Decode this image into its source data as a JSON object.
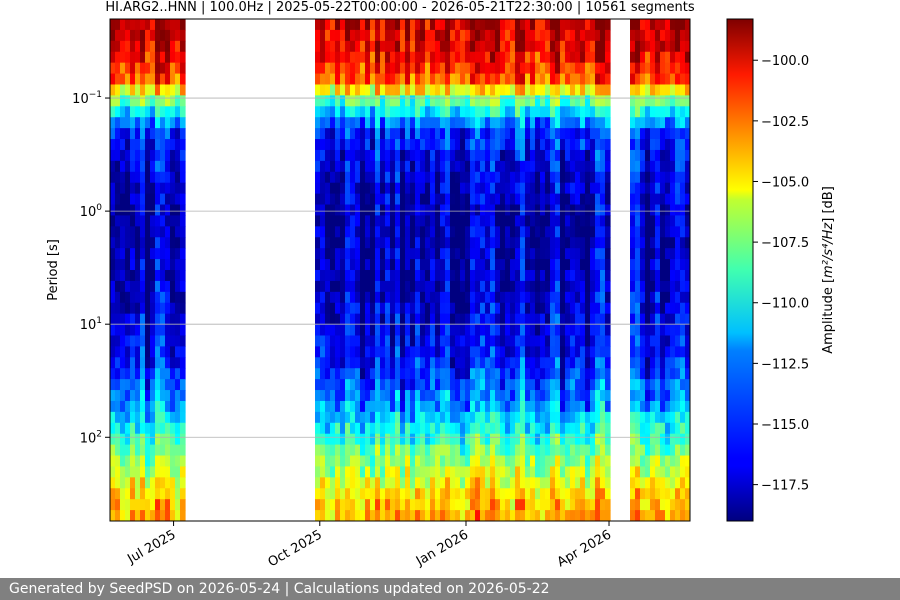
{
  "chart_data": {
    "type": "heatmap",
    "title": "HI.ARG2..HNN | 100.0Hz | 2025-05-22T00:00:00 - 2026-05-21T22:30:00 | 10561 segments",
    "xlabel": "",
    "ylabel": "Period [s]",
    "y_scale": "log",
    "ylim": [
      550,
      0.02
    ],
    "x_range": [
      "2025-05-22",
      "2026-05-21"
    ],
    "x_tick_labels": [
      "Jul 2025",
      "Oct 2025",
      "Jan 2026",
      "Apr 2026"
    ],
    "x_tick_dates": [
      "2025-07-01",
      "2025-10-01",
      "2026-01-01",
      "2026-04-01"
    ],
    "y_ticks": [
      {
        "value": 0.1,
        "base": "10",
        "exp": "−1"
      },
      {
        "value": 1,
        "base": "10",
        "exp": "0"
      },
      {
        "value": 10,
        "base": "10",
        "exp": "1"
      },
      {
        "value": 100,
        "base": "10",
        "exp": "2"
      }
    ],
    "grid": true,
    "colorbar": {
      "label_prefix": "Amplitude [",
      "label_math": "m²/s⁴/Hz",
      "label_suffix": "] [dB]",
      "colormap": "jet",
      "range": [
        -119.0,
        -98.3
      ],
      "ticks": [
        "−100.0",
        "−102.5",
        "−105.0",
        "−107.5",
        "−110.0",
        "−112.5",
        "−115.0",
        "−117.5"
      ],
      "tick_values": [
        -100.0,
        -102.5,
        -105.0,
        -107.5,
        -110.0,
        -112.5,
        -115.0,
        -117.5
      ]
    },
    "data_gaps": [
      [
        "2025-07-09",
        "2025-09-17"
      ],
      [
        "2025-09-18",
        "2025-09-29"
      ],
      [
        "2026-04-03",
        "2026-04-15"
      ]
    ],
    "period_profile_db": [
      {
        "period": 0.02,
        "db": -99.5
      },
      {
        "period": 0.04,
        "db": -100.5
      },
      {
        "period": 0.07,
        "db": -102.5
      },
      {
        "period": 0.1,
        "db": -108.5
      },
      {
        "period": 0.2,
        "db": -115.5
      },
      {
        "period": 1,
        "db": -117.5
      },
      {
        "period": 5,
        "db": -117.0
      },
      {
        "period": 20,
        "db": -115.5
      },
      {
        "period": 60,
        "db": -112.5
      },
      {
        "period": 150,
        "db": -108.5
      },
      {
        "period": 300,
        "db": -105.5
      },
      {
        "period": 550,
        "db": -104.0
      }
    ]
  },
  "footer": {
    "text": "Generated by SeedPSD on 2026-05-24 | Calculations updated on 2026-05-22"
  }
}
